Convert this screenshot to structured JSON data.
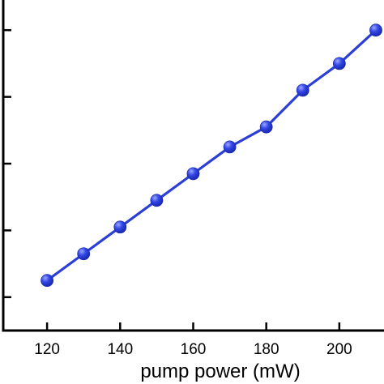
{
  "chart_data": {
    "type": "line",
    "xlabel": "pump power (mW)",
    "ylabel": "",
    "xlim": [
      108,
      214
    ],
    "ylim": [
      0,
      10
    ],
    "x_ticks": [
      120,
      140,
      160,
      180,
      200
    ],
    "x_tick_labels": [
      "120",
      "140",
      "160",
      "180",
      "200"
    ],
    "y_ticks": [
      1,
      3,
      5,
      7,
      9
    ],
    "grid": false,
    "series": [
      {
        "color": "#2b3fd6",
        "marker": "circle",
        "x": [
          120,
          130,
          140,
          150,
          160,
          170,
          180,
          190,
          200,
          210
        ],
        "y": [
          1.5,
          2.3,
          3.1,
          3.9,
          4.7,
          5.5,
          6.1,
          7.2,
          8.0,
          9.0
        ]
      }
    ]
  }
}
